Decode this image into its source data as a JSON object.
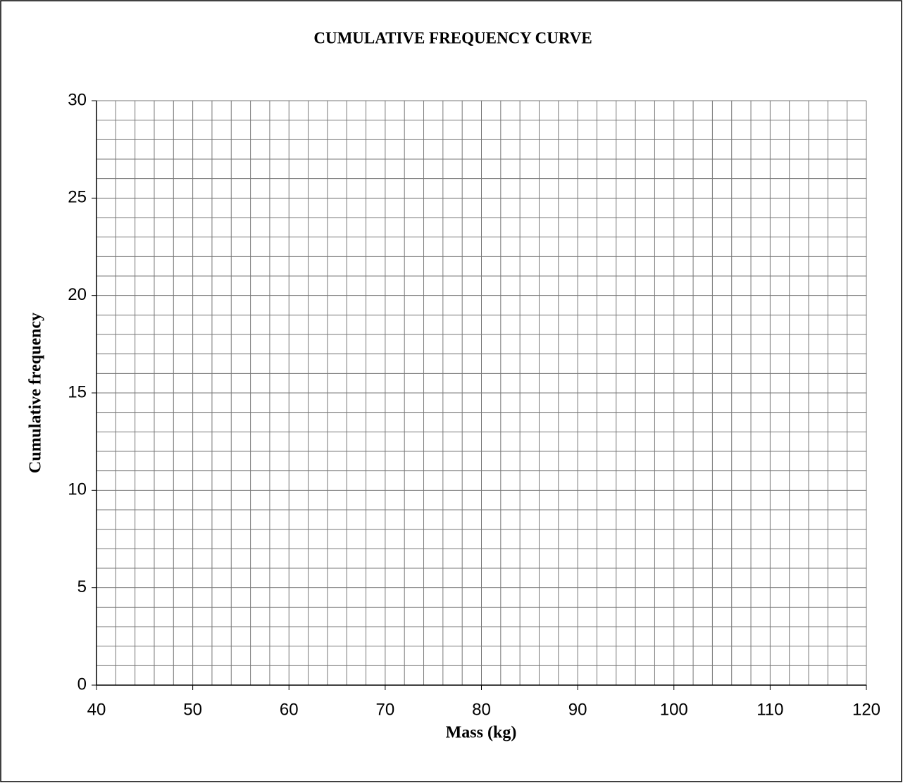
{
  "chart_data": {
    "type": "line",
    "title": "CUMULATIVE FREQUENCY CURVE",
    "x_label": "Mass (kg)",
    "y_label": "Cumulative frequency",
    "series": [],
    "xlim": [
      40,
      120
    ],
    "xticks": [
      40,
      50,
      60,
      70,
      80,
      90,
      100,
      110,
      120
    ],
    "ylim": [
      0,
      30
    ],
    "yticks": [
      0,
      5,
      10,
      15,
      20,
      25,
      30
    ],
    "grid": true,
    "minor_grid": {
      "x": 2,
      "y": 1
    }
  }
}
